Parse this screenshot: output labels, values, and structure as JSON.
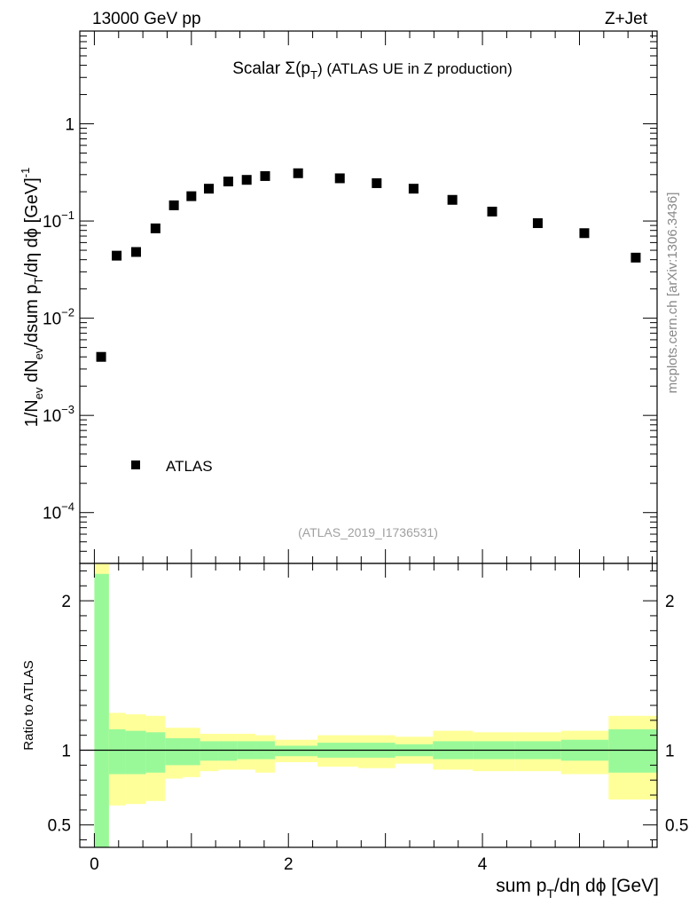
{
  "header": {
    "energy_label": "13000 GeV pp",
    "process_label": "Z+Jet",
    "plot_title_main": "Scalar Σ(p",
    "plot_title_sub": "T",
    "plot_title_rest": ") (ATLAS UE in Z production)",
    "analysis_id": "(ATLAS_2019_I1736531)",
    "side_label": "mcplots.cern.ch [arXiv:1306.3436]"
  },
  "legend": {
    "entry": "ATLAS",
    "placement": "bottom-left"
  },
  "colors": {
    "marker": "#000000",
    "band_inner": "#99f999",
    "band_outer": "#ffff99",
    "ref_line": "#000000"
  },
  "chart_data": [
    {
      "type": "scatter",
      "yscale": "log",
      "ylabel": {
        "a": "1/N",
        "a_sub": "ev",
        "b": " dN",
        "b_sub": "ev",
        "c": "/dsum p",
        "c_sub": "T",
        "d": "/dη dϕ  [GeV]",
        "d_sup": "-1"
      },
      "xlim": [
        -0.15,
        5.8
      ],
      "ylim": [
        3e-05,
        9
      ],
      "ytick_labels": [
        {
          "value": 1,
          "base": "1",
          "exp": ""
        },
        {
          "value": 0.1,
          "base": "10",
          "exp": "−1"
        },
        {
          "value": 0.01,
          "base": "10",
          "exp": "−2"
        },
        {
          "value": 0.001,
          "base": "10",
          "exp": "−3"
        },
        {
          "value": 0.0001,
          "base": "10",
          "exp": "−4"
        }
      ],
      "series": [
        {
          "name": "ATLAS",
          "x": [
            0.07,
            0.23,
            0.43,
            0.63,
            0.82,
            1.0,
            1.18,
            1.38,
            1.57,
            1.76,
            2.1,
            2.53,
            2.91,
            3.29,
            3.69,
            4.1,
            4.57,
            5.05,
            5.58
          ],
          "y": [
            0.004,
            0.044,
            0.048,
            0.084,
            0.145,
            0.18,
            0.215,
            0.255,
            0.265,
            0.29,
            0.31,
            0.275,
            0.245,
            0.215,
            0.165,
            0.125,
            0.095,
            0.075,
            0.042
          ]
        }
      ]
    },
    {
      "type": "area",
      "ylabel": "Ratio to ATLAS",
      "xlabel": {
        "a": "sum p",
        "a_sub": "T",
        "b": "/dη dϕ [GeV]"
      },
      "xlim": [
        -0.15,
        5.8
      ],
      "ylim": [
        0.35,
        2.25
      ],
      "xtick_labels": [
        {
          "value": 0,
          "label": "0"
        },
        {
          "value": 2,
          "label": "2"
        },
        {
          "value": 4,
          "label": "4"
        }
      ],
      "ytick_labels": [
        {
          "value": 0.5,
          "label": "0.5"
        },
        {
          "value": 1,
          "label": "1"
        },
        {
          "value": 2,
          "label": "2"
        }
      ],
      "bins": [
        {
          "x0": 0.0,
          "x1": 0.15,
          "in_lo": 0.3,
          "in_hi": 2.18,
          "out_lo": 0.3,
          "out_hi": 2.3
        },
        {
          "x0": 0.15,
          "x1": 0.32,
          "in_lo": 0.84,
          "in_hi": 1.14,
          "out_lo": 0.63,
          "out_hi": 1.25
        },
        {
          "x0": 0.32,
          "x1": 0.53,
          "in_lo": 0.84,
          "in_hi": 1.13,
          "out_lo": 0.64,
          "out_hi": 1.24
        },
        {
          "x0": 0.53,
          "x1": 0.73,
          "in_lo": 0.85,
          "in_hi": 1.12,
          "out_lo": 0.66,
          "out_hi": 1.23
        },
        {
          "x0": 0.73,
          "x1": 0.91,
          "in_lo": 0.9,
          "in_hi": 1.08,
          "out_lo": 0.81,
          "out_hi": 1.15
        },
        {
          "x0": 0.91,
          "x1": 1.09,
          "in_lo": 0.9,
          "in_hi": 1.08,
          "out_lo": 0.82,
          "out_hi": 1.15
        },
        {
          "x0": 1.09,
          "x1": 1.28,
          "in_lo": 0.93,
          "in_hi": 1.06,
          "out_lo": 0.86,
          "out_hi": 1.11
        },
        {
          "x0": 1.28,
          "x1": 1.47,
          "in_lo": 0.93,
          "in_hi": 1.06,
          "out_lo": 0.87,
          "out_hi": 1.11
        },
        {
          "x0": 1.47,
          "x1": 1.66,
          "in_lo": 0.94,
          "in_hi": 1.06,
          "out_lo": 0.87,
          "out_hi": 1.11
        },
        {
          "x0": 1.66,
          "x1": 1.86,
          "in_lo": 0.94,
          "in_hi": 1.06,
          "out_lo": 0.85,
          "out_hi": 1.1
        },
        {
          "x0": 1.86,
          "x1": 2.3,
          "in_lo": 0.96,
          "in_hi": 1.03,
          "out_lo": 0.92,
          "out_hi": 1.07
        },
        {
          "x0": 2.3,
          "x1": 2.72,
          "in_lo": 0.95,
          "in_hi": 1.05,
          "out_lo": 0.89,
          "out_hi": 1.1
        },
        {
          "x0": 2.72,
          "x1": 3.1,
          "in_lo": 0.95,
          "in_hi": 1.05,
          "out_lo": 0.88,
          "out_hi": 1.1
        },
        {
          "x0": 3.1,
          "x1": 3.49,
          "in_lo": 0.96,
          "in_hi": 1.04,
          "out_lo": 0.91,
          "out_hi": 1.09
        },
        {
          "x0": 3.49,
          "x1": 3.9,
          "in_lo": 0.94,
          "in_hi": 1.06,
          "out_lo": 0.87,
          "out_hi": 1.13
        },
        {
          "x0": 3.9,
          "x1": 4.33,
          "in_lo": 0.94,
          "in_hi": 1.06,
          "out_lo": 0.86,
          "out_hi": 1.12
        },
        {
          "x0": 4.33,
          "x1": 4.81,
          "in_lo": 0.94,
          "in_hi": 1.06,
          "out_lo": 0.86,
          "out_hi": 1.12
        },
        {
          "x0": 4.81,
          "x1": 5.3,
          "in_lo": 0.93,
          "in_hi": 1.07,
          "out_lo": 0.84,
          "out_hi": 1.13
        },
        {
          "x0": 5.3,
          "x1": 5.8,
          "in_lo": 0.85,
          "in_hi": 1.14,
          "out_lo": 0.67,
          "out_hi": 1.23
        }
      ],
      "reference_line": 1
    }
  ]
}
